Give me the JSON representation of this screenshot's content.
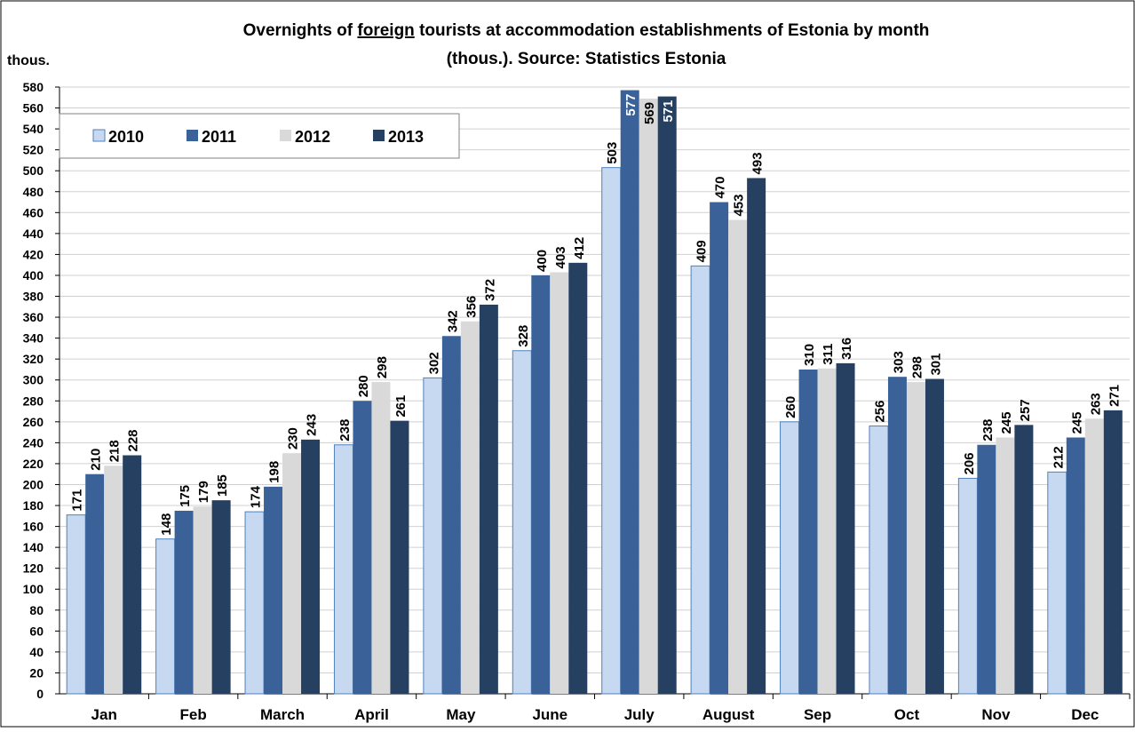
{
  "chart_data": {
    "type": "bar",
    "title": [
      "Overnights of ",
      "foreign",
      " tourists at accommodation establishments of Estonia by month",
      "(thous.). Source: Statistics Estonia"
    ],
    "y_label": "thous.",
    "categories": [
      "Jan",
      "Feb",
      "March",
      "April",
      "May",
      "June",
      "July",
      "August",
      "Sep",
      "Oct",
      "Nov",
      "Dec"
    ],
    "series": [
      {
        "name": "2010",
        "color": "#c6d9f1",
        "values": [
          171,
          148,
          174,
          238,
          302,
          328,
          503,
          409,
          260,
          256,
          206,
          212
        ]
      },
      {
        "name": "2011",
        "color": "#3a6299",
        "values": [
          210,
          175,
          198,
          280,
          342,
          400,
          577,
          470,
          310,
          303,
          238,
          245
        ]
      },
      {
        "name": "2012",
        "color": "#d9d9d9",
        "values": [
          218,
          179,
          230,
          298,
          356,
          403,
          569,
          453,
          311,
          298,
          245,
          263
        ]
      },
      {
        "name": "2013",
        "color": "#254061",
        "values": [
          228,
          185,
          243,
          261,
          372,
          412,
          571,
          493,
          316,
          301,
          257,
          271
        ]
      }
    ],
    "ylim": [
      0,
      580
    ],
    "yticks": [
      0,
      20,
      40,
      60,
      80,
      100,
      120,
      140,
      160,
      180,
      200,
      220,
      240,
      260,
      280,
      300,
      320,
      340,
      360,
      380,
      400,
      420,
      440,
      460,
      480,
      500,
      520,
      540,
      560,
      580
    ],
    "grid": true,
    "legend": "top-left"
  }
}
